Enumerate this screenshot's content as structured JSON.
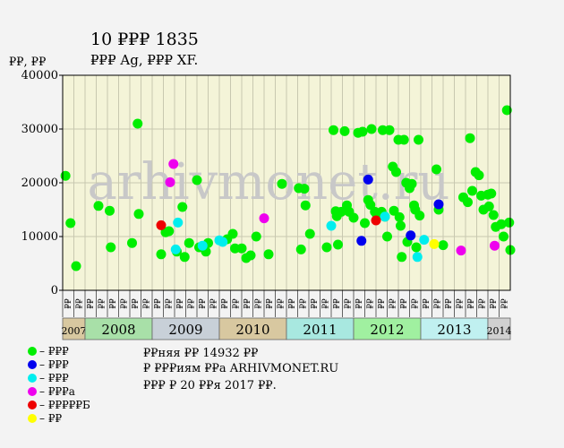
{
  "chart_data": {
    "type": "scatter",
    "title": "10 ₽₽₽ 1835",
    "subtitle": "₽₽₽ Ag, ₽₽₽ XF.",
    "ylabel": "₽₽, ₽₽",
    "ylim": [
      0,
      40000
    ],
    "yticks": [
      0,
      10000,
      20000,
      30000,
      40000
    ],
    "grid": true,
    "watermark": "arhivmonet.ru",
    "period_labels": [
      "₽₽",
      "₽₽",
      "₽₽",
      "₽₽",
      "₽₽",
      "₽₽",
      "₽₽",
      "₽₽",
      "₽₽",
      "₽₽",
      "₽₽",
      "₽₽",
      "₽₽",
      "₽₽",
      "₽₽",
      "₽₽",
      "₽₽",
      "₽₽",
      "₽₽",
      "₽₽",
      "₽₽",
      "₽₽",
      "₽₽",
      "₽₽",
      "₽₽",
      "₽₽",
      "₽₽",
      "₽₽",
      "₽₽",
      "₽₽",
      "₽₽",
      "₽₽",
      "₽₽",
      "₽₽",
      "₽₽",
      "₽₽",
      "₽₽",
      "₽₽",
      "₽₽",
      "₽₽",
      "₽₽",
      "₽₽",
      "₽₽",
      "₽₽",
      "₽₽",
      "₽₽",
      "₽₽",
      "₽₽",
      "₽₽",
      "₽₽",
      "₽₽",
      "₽₽",
      "₽₽",
      "₽₽",
      "₽₽",
      "₽₽",
      "₽₽",
      "₽₽",
      "₽₽",
      "₽₽",
      "₽₽",
      "₽₽",
      "₽₽",
      "₽₽",
      "₽₽",
      "₽₽",
      "₽₽",
      "₽₽",
      "₽₽",
      "₽₽",
      "₽₽",
      "₽₽",
      "₽₽",
      "₽₽",
      "₽₽",
      "₽₽",
      "₽₽",
      "₽₽",
      "₽₽",
      "₽₽",
      "₽₽",
      "₽₽",
      "₽₽",
      "₽₽",
      "₽₽",
      "₽₽",
      "₽₽",
      "₽₽",
      "₽₽",
      "₽₽"
    ],
    "years": [
      {
        "label": "2007",
        "start": 0,
        "end": 2,
        "color": "#d8c8a0",
        "small": true
      },
      {
        "label": "2008",
        "start": 2,
        "end": 8,
        "color": "#a8e0a8"
      },
      {
        "label": "2009",
        "start": 8,
        "end": 14,
        "color": "#c8d0d8"
      },
      {
        "label": "2010",
        "start": 14,
        "end": 20,
        "color": "#d8c8a0"
      },
      {
        "label": "2011",
        "start": 20,
        "end": 26,
        "color": "#a8e8e0"
      },
      {
        "label": "2012",
        "start": 26,
        "end": 32,
        "color": "#a0f0a0"
      },
      {
        "label": "2013",
        "start": 32,
        "end": 38,
        "color": "#c0f0f0"
      },
      {
        "label": "2014",
        "start": 38,
        "end": 40,
        "color": "#d0d0d0",
        "small": true
      }
    ],
    "series": [
      {
        "name": "– ₽₽₽",
        "color": "#00ee00",
        "points": [
          [
            0.25,
            21300
          ],
          [
            0.7,
            12500
          ],
          [
            1.2,
            4500
          ],
          [
            3.2,
            15700
          ],
          [
            4.2,
            14800
          ],
          [
            4.3,
            8000
          ],
          [
            6.2,
            8800
          ],
          [
            6.7,
            31000
          ],
          [
            6.8,
            14200
          ],
          [
            8.8,
            6700
          ],
          [
            9.2,
            10800
          ],
          [
            9.5,
            11000
          ],
          [
            10.2,
            7200
          ],
          [
            10.7,
            15500
          ],
          [
            10.9,
            6200
          ],
          [
            11.3,
            8800
          ],
          [
            12.0,
            20500
          ],
          [
            12.2,
            8000
          ],
          [
            12.8,
            7200
          ],
          [
            13.0,
            8800
          ],
          [
            14.7,
            9500
          ],
          [
            15.2,
            10500
          ],
          [
            15.4,
            7800
          ],
          [
            16.0,
            7800
          ],
          [
            16.4,
            6000
          ],
          [
            16.8,
            6500
          ],
          [
            17.3,
            10000
          ],
          [
            18.4,
            6700
          ],
          [
            19.6,
            19800
          ],
          [
            21.1,
            19000
          ],
          [
            21.3,
            7600
          ],
          [
            21.6,
            18900
          ],
          [
            21.7,
            15800
          ],
          [
            22.1,
            10500
          ],
          [
            23.6,
            8000
          ],
          [
            24.2,
            29800
          ],
          [
            24.4,
            14700
          ],
          [
            24.5,
            13800
          ],
          [
            24.6,
            8500
          ],
          [
            24.9,
            14600
          ],
          [
            25.2,
            29600
          ],
          [
            25.4,
            15800
          ],
          [
            25.6,
            14600
          ],
          [
            26.0,
            13500
          ],
          [
            26.4,
            29300
          ],
          [
            26.8,
            29500
          ],
          [
            27.0,
            12500
          ],
          [
            27.3,
            16800
          ],
          [
            27.5,
            15900
          ],
          [
            27.6,
            30000
          ],
          [
            27.9,
            14600
          ],
          [
            28.1,
            13700
          ],
          [
            28.5,
            14600
          ],
          [
            28.6,
            29800
          ],
          [
            28.8,
            13700
          ],
          [
            29.0,
            10000
          ],
          [
            29.2,
            29800
          ],
          [
            29.5,
            23000
          ],
          [
            29.6,
            14800
          ],
          [
            29.8,
            22000
          ],
          [
            30.0,
            28000
          ],
          [
            30.1,
            13600
          ],
          [
            30.2,
            12000
          ],
          [
            30.3,
            6200
          ],
          [
            30.5,
            28000
          ],
          [
            30.7,
            20000
          ],
          [
            30.8,
            9000
          ],
          [
            31.0,
            19000
          ],
          [
            31.2,
            19800
          ],
          [
            31.4,
            15800
          ],
          [
            31.5,
            15000
          ],
          [
            31.6,
            8000
          ],
          [
            31.8,
            28000
          ],
          [
            31.9,
            13900
          ],
          [
            33.4,
            22500
          ],
          [
            33.6,
            15000
          ],
          [
            34.0,
            8400
          ],
          [
            35.8,
            17300
          ],
          [
            36.2,
            16400
          ],
          [
            36.4,
            28300
          ],
          [
            36.6,
            18500
          ],
          [
            36.9,
            22000
          ],
          [
            37.2,
            21400
          ],
          [
            37.4,
            17600
          ],
          [
            37.6,
            15000
          ],
          [
            38.0,
            17800
          ],
          [
            38.1,
            15600
          ],
          [
            38.3,
            18000
          ],
          [
            38.5,
            14000
          ],
          [
            38.7,
            11800
          ],
          [
            39.2,
            12300
          ],
          [
            39.4,
            10000
          ],
          [
            39.7,
            33500
          ],
          [
            39.9,
            12600
          ],
          [
            40.0,
            7500
          ]
        ]
      },
      {
        "name": "– ₽₽₽",
        "color": "#0000ee",
        "points": [
          [
            26.7,
            9200
          ],
          [
            27.3,
            20600
          ],
          [
            31.1,
            10200
          ],
          [
            33.6,
            16000
          ]
        ]
      },
      {
        "name": "– ₽₽₽",
        "color": "#00eeee",
        "points": [
          [
            10.1,
            7600
          ],
          [
            10.3,
            12600
          ],
          [
            12.5,
            8300
          ],
          [
            14.0,
            9300
          ],
          [
            14.3,
            9000
          ],
          [
            24.0,
            12000
          ],
          [
            28.8,
            13700
          ],
          [
            31.7,
            6200
          ],
          [
            32.3,
            9400
          ]
        ]
      },
      {
        "name": "– ₽₽₽а",
        "color": "#ee00ee",
        "points": [
          [
            9.6,
            20100
          ],
          [
            9.9,
            23500
          ],
          [
            18.0,
            13400
          ],
          [
            35.6,
            7400
          ],
          [
            38.6,
            8300
          ]
        ]
      },
      {
        "name": "– ₽₽₽₽₽Б",
        "color": "#ee0000",
        "points": [
          [
            8.8,
            12100
          ],
          [
            28.0,
            13000
          ]
        ]
      },
      {
        "name": "– ₽₽",
        "color": "#ffff00",
        "points": [
          [
            33.2,
            8600
          ]
        ]
      }
    ],
    "notes": [
      "₽₽няя ₽₽ 14932 ₽₽",
      "₽ ₽₽₽иям ₽₽а ARHIVMONET.RU",
      "₽₽₽ ₽ 20 ₽₽я 2017 ₽₽."
    ]
  }
}
